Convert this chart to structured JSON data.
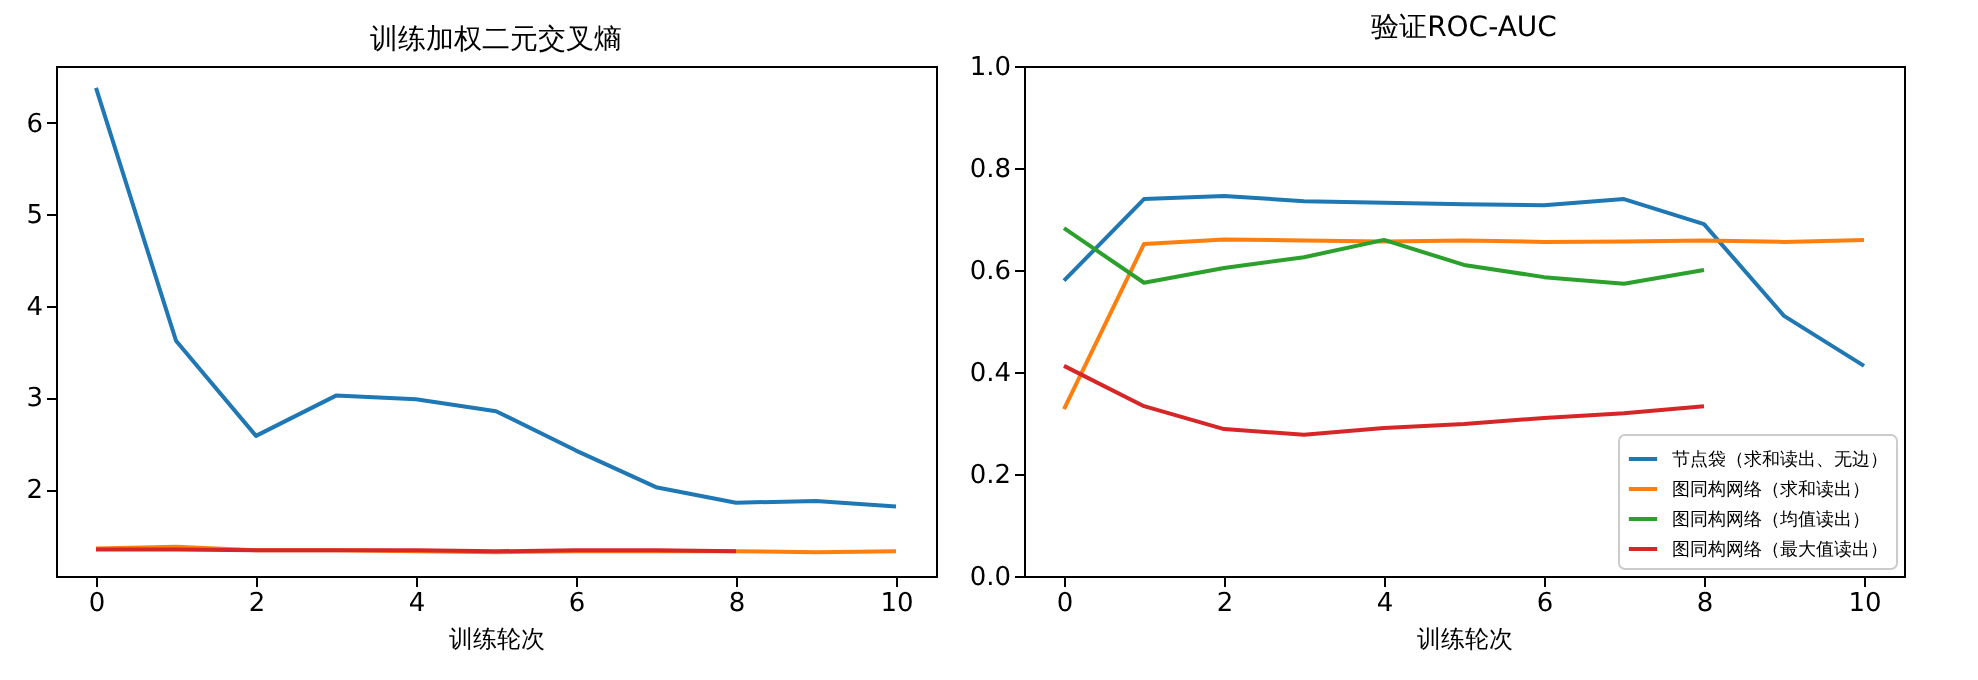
{
  "chart_data": [
    {
      "type": "line",
      "title": "训练加权二元交叉熵",
      "xlabel": "训练轮次",
      "x": [
        0,
        1,
        2,
        3,
        4,
        5,
        6,
        7,
        8,
        9,
        10
      ],
      "xlim": [
        -0.5,
        10.5
      ],
      "xticks": [
        0,
        2,
        4,
        6,
        8,
        10
      ],
      "ylim": [
        1.05,
        6.62
      ],
      "yticks": [
        2,
        3,
        4,
        5,
        6
      ],
      "grid": false,
      "legend": false,
      "line_style": "solid",
      "marker": "none",
      "series": [
        {
          "color": "#1f77b4",
          "values": [
            6.38,
            3.62,
            2.58,
            3.02,
            2.98,
            2.85,
            2.42,
            2.02,
            1.85,
            1.87,
            1.81
          ]
        },
        {
          "color": "#ff7f0e",
          "values": [
            1.35,
            1.37,
            1.33,
            1.33,
            1.32,
            1.31,
            1.32,
            1.32,
            1.32,
            1.31,
            1.32
          ]
        },
        {
          "color": "#d62728",
          "values": [
            1.34,
            1.34,
            1.33,
            1.33,
            1.33,
            1.32,
            1.33,
            1.33,
            1.32,
            null,
            null
          ]
        }
      ]
    },
    {
      "type": "line",
      "title": "验证ROC-AUC",
      "xlabel": "训练轮次",
      "x": [
        0,
        1,
        2,
        3,
        4,
        5,
        6,
        7,
        8,
        9,
        10
      ],
      "xlim": [
        -0.5,
        10.5
      ],
      "xticks": [
        0,
        2,
        4,
        6,
        8,
        10
      ],
      "ylim": [
        0,
        1
      ],
      "yticks": [
        {
          "value": 0,
          "label": "0.0"
        },
        0.2,
        0.4,
        0.6,
        0.8,
        {
          "value": 1,
          "label": "1.0"
        }
      ],
      "grid": false,
      "legend": "bottom right",
      "line_style": "solid",
      "marker": "none",
      "series": [
        {
          "name": "节点袋（求和读出、无边）",
          "color": "#1f77b4",
          "values": [
            0.579,
            0.739,
            0.745,
            0.735,
            0.732,
            0.729,
            0.727,
            0.739,
            0.69,
            0.51,
            0.412
          ]
        },
        {
          "name": "图同构网络（求和读出）",
          "color": "#ff7f0e",
          "values": [
            0.327,
            0.651,
            0.66,
            0.658,
            0.656,
            0.658,
            0.655,
            0.656,
            0.658,
            0.655,
            0.659
          ]
        },
        {
          "name": "图同构网络（均值读出）",
          "color": "#2ca02c",
          "values": [
            0.682,
            0.575,
            0.604,
            0.625,
            0.659,
            0.61,
            0.586,
            0.573,
            0.6,
            null,
            null
          ]
        },
        {
          "name": "图同构网络（最大值读出）",
          "color": "#d62728",
          "values": [
            0.412,
            0.333,
            0.288,
            0.277,
            0.29,
            0.298,
            0.31,
            0.319,
            0.333,
            null,
            null
          ]
        }
      ]
    }
  ]
}
